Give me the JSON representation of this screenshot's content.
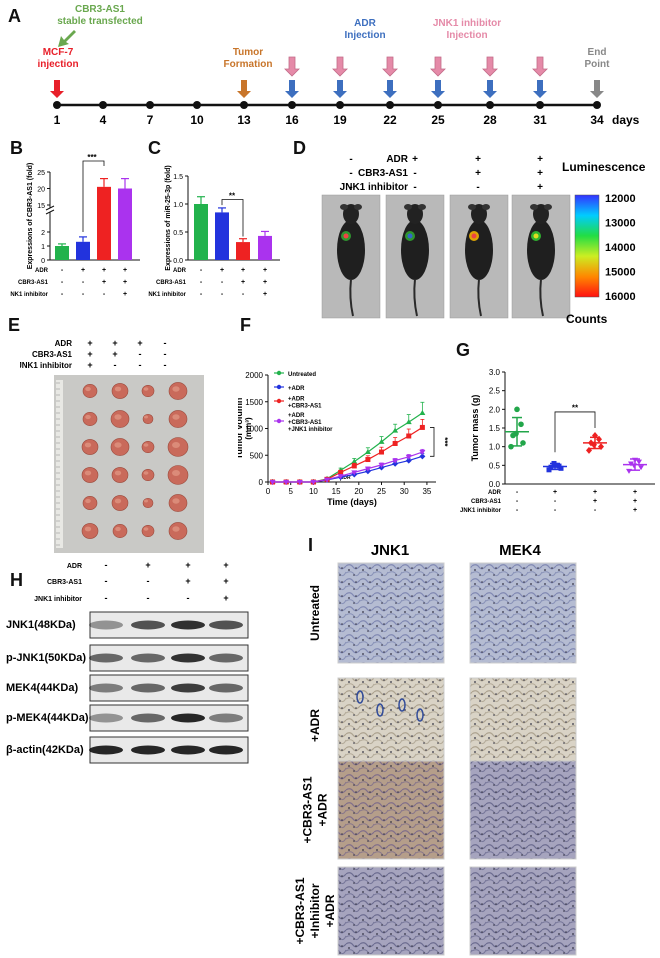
{
  "panels": {
    "A": "A",
    "B": "B",
    "C": "C",
    "D": "D",
    "E": "E",
    "F": "F",
    "G": "G",
    "H": "H",
    "I": "I"
  },
  "timeline": {
    "days": [
      "1",
      "4",
      "7",
      "10",
      "13",
      "16",
      "19",
      "22",
      "25",
      "28",
      "31",
      "34"
    ],
    "days_unit": "days",
    "events": {
      "mcf7": "MCF-7\ninjection",
      "cbr3": "CBR3-AS1\nstable transfected",
      "tumor": "Tumor\nFormation",
      "adr": "ADR\nInjection",
      "jnk1": "JNK1 inhibitor\nInjection",
      "end": "End\nPoint"
    },
    "colors": {
      "mcf7": "#e8202a",
      "cbr3": "#6aa84f",
      "tumor": "#c8752a",
      "adr": "#3d6fbf",
      "jnk1": "#e58aa8",
      "end": "#888888"
    }
  },
  "treatment_labels": {
    "adr": "ADR",
    "cbr3": "CBR3-AS1",
    "jnk1": "JNK1 inhibitor"
  },
  "signs": {
    "adr": [
      "-",
      "+",
      "+",
      "+"
    ],
    "cbr3": [
      "-",
      "-",
      "+",
      "+"
    ],
    "jnk1": [
      "-",
      "-",
      "-",
      "+"
    ]
  },
  "chart_data": [
    {
      "id": "B",
      "type": "bar",
      "ylabel": "Expressions of CBR3-AS1 (fold)",
      "ticks": [
        "0",
        "1",
        "2",
        "3",
        "15",
        "20",
        "25"
      ],
      "values": [
        1.0,
        1.3,
        20.5,
        20.0
      ],
      "errors": [
        0.15,
        0.35,
        2.5,
        3.0
      ],
      "colors": [
        "#22b24c",
        "#2233dd",
        "#ee2222",
        "#aa33ee"
      ],
      "significance": "***"
    },
    {
      "id": "C",
      "type": "bar",
      "ylabel": "Expressions of miR-25-3p (fold)",
      "ticks": [
        "0.0",
        "0.5",
        "1.0",
        "1.5"
      ],
      "ylim": [
        0,
        1.5
      ],
      "values": [
        1.0,
        0.85,
        0.32,
        0.43
      ],
      "errors": [
        0.13,
        0.08,
        0.06,
        0.08
      ],
      "colors": [
        "#22b24c",
        "#2233dd",
        "#ee2222",
        "#aa33ee"
      ],
      "significance": "**"
    },
    {
      "id": "F",
      "type": "line",
      "xlabel": "Time (days)",
      "ylabel": "Tumor volumn\n(mm³)",
      "xticks": [
        "0",
        "5",
        "10",
        "15",
        "20",
        "25",
        "30",
        "35"
      ],
      "yticks": [
        "0",
        "500",
        "1000",
        "1500",
        "2000"
      ],
      "xlim": [
        0,
        37
      ],
      "ylim": [
        0,
        2000
      ],
      "x": [
        1,
        4,
        7,
        10,
        13,
        16,
        19,
        22,
        25,
        28,
        31,
        34
      ],
      "annotation": "ADR",
      "significance": "***",
      "series": [
        {
          "name": "Untreated",
          "color": "#22b24c",
          "values": [
            0,
            0,
            0,
            0,
            60,
            220,
            380,
            560,
            750,
            960,
            1120,
            1290
          ],
          "err": [
            0,
            0,
            0,
            0,
            20,
            40,
            60,
            80,
            100,
            120,
            140,
            200
          ]
        },
        {
          "name": "+ADR",
          "color": "#2233dd",
          "values": [
            0,
            0,
            0,
            0,
            40,
            90,
            140,
            200,
            270,
            340,
            400,
            480
          ],
          "err": [
            0,
            0,
            0,
            0,
            10,
            20,
            25,
            30,
            35,
            40,
            45,
            50
          ]
        },
        {
          "name": "+ADR\n+CBR3-AS1",
          "color": "#ee2222",
          "values": [
            0,
            0,
            0,
            0,
            50,
            180,
            300,
            420,
            560,
            720,
            860,
            1020
          ],
          "err": [
            0,
            0,
            0,
            0,
            15,
            35,
            50,
            70,
            90,
            110,
            130,
            150
          ]
        },
        {
          "name": "+ADR\n+CBR3-AS1\n+JNK1 inhibitor",
          "color": "#aa33ee",
          "values": [
            0,
            0,
            0,
            0,
            45,
            110,
            180,
            250,
            320,
            400,
            470,
            560
          ],
          "err": [
            0,
            0,
            0,
            0,
            12,
            20,
            25,
            30,
            35,
            40,
            45,
            50
          ]
        }
      ]
    },
    {
      "id": "G",
      "type": "scatter",
      "ylabel": "Tumor mass (g)",
      "yticks": [
        "0.0",
        "0.5",
        "1.0",
        "1.5",
        "2.0",
        "2.5",
        "3.0"
      ],
      "ylim": [
        0,
        3
      ],
      "colors": [
        "#22a64a",
        "#2233dd",
        "#ee2222",
        "#aa33ee"
      ],
      "groups": [
        [
          1.0,
          1.1,
          1.3,
          1.6,
          2.0,
          1.35
        ],
        [
          0.38,
          0.42,
          0.45,
          0.48,
          0.5,
          0.55
        ],
        [
          0.9,
          1.0,
          1.1,
          1.2,
          1.3,
          1.05
        ],
        [
          0.35,
          0.45,
          0.55,
          0.6,
          0.65,
          0.5
        ]
      ],
      "means": [
        1.4,
        0.47,
        1.1,
        0.52
      ],
      "sd": [
        0.38,
        0.08,
        0.15,
        0.15
      ],
      "significance": "**"
    }
  ],
  "panelD": {
    "legend_title": "Luminescence",
    "legend_ticks": [
      "12000",
      "13000",
      "14000",
      "15000",
      "16000"
    ],
    "legend_unit": "Counts"
  },
  "panelH": {
    "rows": [
      "JNK1(48KDa)",
      "p-JNK1(50KDa)",
      "MEK4(44KDa)",
      "p-MEK4(44KDa)",
      "β-actin(42KDa)"
    ]
  },
  "panelI": {
    "columns": [
      "JNK1",
      "MEK4"
    ],
    "rows": [
      "Untreated",
      "+ADR",
      "+CBR3-AS1\n+ADR",
      "+CBR3-AS1\n+Inhibitor\n+ADR"
    ]
  }
}
